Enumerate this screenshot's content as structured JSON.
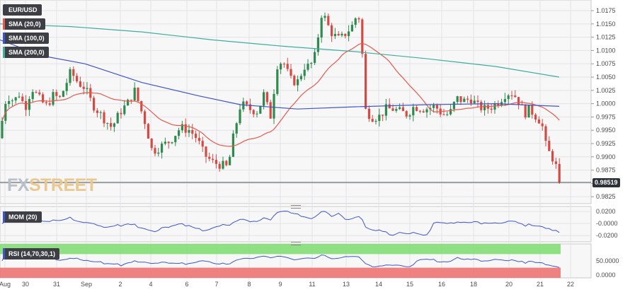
{
  "symbol": "EUR/USD",
  "indicators": {
    "sma20": {
      "label": "SMA (20,0)",
      "color": "#e55a4e"
    },
    "sma100": {
      "label": "SMA (100,0)",
      "color": "#3f56c9"
    },
    "sma200": {
      "label": "SMA (200,0)",
      "color": "#3fae9a"
    },
    "mom": {
      "label": "MOM (20)",
      "color": "#3f56c9"
    },
    "rsi": {
      "label": "RSI (14,70,30,1)",
      "color": "#3f56c9"
    }
  },
  "watermark": {
    "part1": "FX",
    "part2": "STREET"
  },
  "current_price": "0.98519",
  "colors": {
    "bull": "#2f8a4e",
    "bear": "#d64a43",
    "rsi_over": "#7ddb6e",
    "rsi_under": "#ee6c6c"
  },
  "chart_data": [
    {
      "type": "candlestick",
      "title": "EUR/USD",
      "y_ticks": [
        "1.0175",
        "1.0150",
        "1.0125",
        "1.0100",
        "1.0075",
        "1.0050",
        "1.0025",
        "1.0000",
        "0.9975",
        "0.9950",
        "0.9925",
        "0.9900",
        "0.9875",
        "0.9850",
        "0.9825"
      ],
      "ylim": [
        0.9812,
        1.0195
      ],
      "x_ticks": [
        "Aug",
        "30",
        "31",
        "Sep",
        "2",
        "4",
        "6",
        "7",
        "8",
        "9",
        "11",
        "13",
        "14",
        "15",
        "16",
        "18",
        "20",
        "21",
        "22"
      ],
      "series": [
        {
          "name": "SMA (20,0)"
        },
        {
          "name": "SMA (100,0)"
        },
        {
          "name": "SMA (200,0)"
        }
      ],
      "last_price": 0.98519
    },
    {
      "type": "line",
      "title": "MOM (20)",
      "y_ticks": [
        "0.0200",
        "-0.0000",
        "-0.0200"
      ],
      "ylim": [
        -0.0305,
        0.0285
      ]
    },
    {
      "type": "line",
      "title": "RSI (14,70,30,1)",
      "y_ticks": [
        "50.0000",
        "0.0000"
      ],
      "ylim": [
        0,
        100
      ],
      "overbought": 70,
      "oversold": 30
    }
  ]
}
